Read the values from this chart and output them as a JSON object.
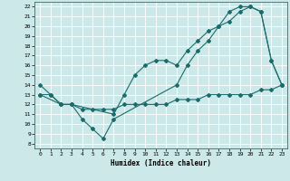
{
  "xlabel": "Humidex (Indice chaleur)",
  "bg_color": "#cce8e8",
  "line_color": "#1a6b6b",
  "grid_color": "#aacccc",
  "xlim": [
    -0.5,
    23.5
  ],
  "ylim": [
    7.5,
    22.5
  ],
  "xticks": [
    0,
    1,
    2,
    3,
    4,
    5,
    6,
    7,
    8,
    9,
    10,
    11,
    12,
    13,
    14,
    15,
    16,
    17,
    18,
    19,
    20,
    21,
    22,
    23
  ],
  "yticks": [
    8,
    9,
    10,
    11,
    12,
    13,
    14,
    15,
    16,
    17,
    18,
    19,
    20,
    21,
    22
  ],
  "line1_x": [
    0,
    1,
    2,
    3,
    4,
    5,
    6,
    7,
    13,
    14,
    15,
    16,
    17,
    18,
    19,
    20,
    21,
    22,
    23
  ],
  "line1_y": [
    14,
    13,
    12,
    12,
    10.5,
    9.5,
    8.5,
    10.5,
    14,
    16,
    17.5,
    18.5,
    20,
    21.5,
    22,
    22,
    21.5,
    16.5,
    14
  ],
  "line2_x": [
    0,
    2,
    3,
    7,
    8,
    9,
    10,
    11,
    12,
    13,
    14,
    15,
    16,
    17,
    18,
    19,
    20,
    21,
    22,
    23
  ],
  "line2_y": [
    13,
    12,
    12,
    11,
    13,
    15,
    16,
    16.5,
    16.5,
    16,
    17.5,
    18.5,
    19.5,
    20,
    20.5,
    21.5,
    22,
    21.5,
    16.5,
    14
  ],
  "line3_x": [
    0,
    1,
    2,
    3,
    4,
    5,
    6,
    7,
    8,
    9,
    10,
    11,
    12,
    13,
    14,
    15,
    16,
    17,
    18,
    19,
    20,
    21,
    22,
    23
  ],
  "line3_y": [
    13,
    13,
    12,
    12,
    11.5,
    11.5,
    11.5,
    11.5,
    12,
    12,
    12,
    12,
    12,
    12.5,
    12.5,
    12.5,
    13,
    13,
    13,
    13,
    13,
    13.5,
    13.5,
    14
  ]
}
